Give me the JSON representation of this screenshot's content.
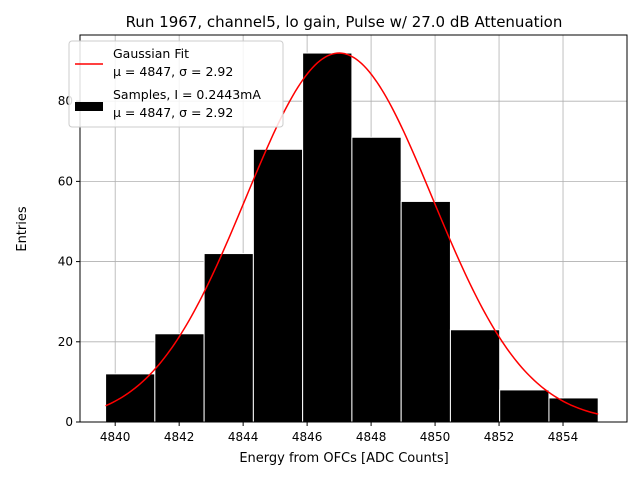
{
  "chart_data": {
    "type": "bar",
    "title": "Run 1967, channel5, lo gain, Pulse w/ 27.0 dB Attenuation",
    "xlabel": "Energy from OFCs [ADC Counts]",
    "ylabel": "Entries",
    "xlim": [
      4838.9,
      4856.0
    ],
    "ylim": [
      0,
      96.5
    ],
    "xticks": [
      4840,
      4842,
      4844,
      4846,
      4848,
      4850,
      4852,
      4854
    ],
    "yticks": [
      0,
      20,
      40,
      60,
      80
    ],
    "grid": true,
    "legend_position": "upper-left",
    "histogram": {
      "name": "Samples",
      "bin_edges": [
        4839.7,
        4841.24,
        4842.78,
        4844.32,
        4845.86,
        4847.4,
        4848.94,
        4850.48,
        4852.02,
        4853.56,
        4855.1
      ],
      "counts": [
        12,
        22,
        42,
        68,
        92,
        71,
        55,
        23,
        8,
        6
      ],
      "color": "#000000",
      "edgecolor": "#ffffff"
    },
    "fit": {
      "name": "Gaussian Fit",
      "type": "gaussian",
      "amplitude": 92.0,
      "mean": 4847.0,
      "sigma": 2.92,
      "x_range": [
        4839.7,
        4855.1
      ],
      "color": "#ff0000"
    },
    "legend": [
      {
        "kind": "line",
        "color": "#ff0000",
        "line1": "Gaussian Fit",
        "line2": "μ = 4847, σ = 2.92"
      },
      {
        "kind": "patch",
        "color": "#000000",
        "line1": "Samples, I = 0.2443mA",
        "line2": "μ = 4847, σ = 2.92"
      }
    ]
  }
}
